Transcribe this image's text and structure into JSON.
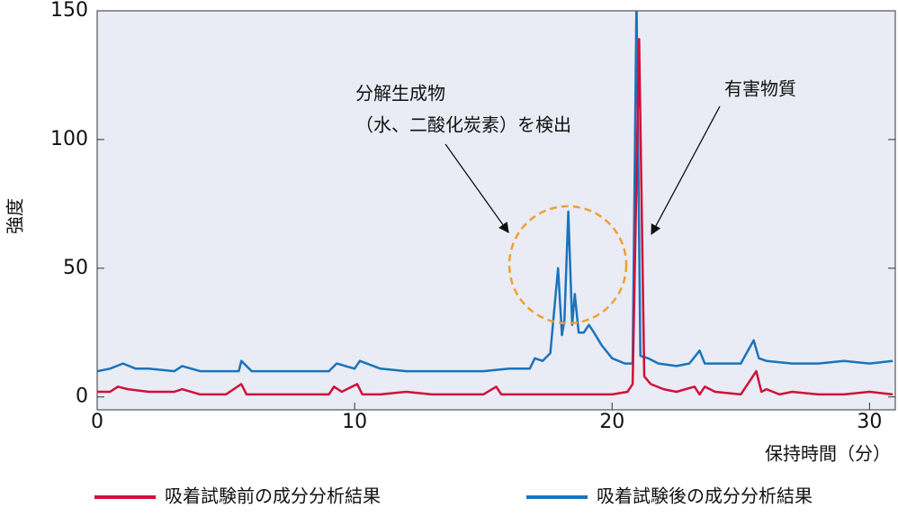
{
  "chart_data": {
    "type": "line",
    "xlabel": "保持時間（分）",
    "ylabel": "強度",
    "annotations": [
      "分解生成物",
      "（水、二酸化炭素）を検出",
      "有害物質"
    ],
    "xlim": [
      0,
      31
    ],
    "ylim": [
      -5,
      150
    ],
    "xticks": [
      0,
      10,
      20,
      30
    ],
    "yticks": [
      0,
      50,
      100,
      150
    ],
    "grid": false,
    "legend": "bottom",
    "series": [
      {
        "name": "吸着試験前の成分分析結果",
        "color": "#d0103a",
        "x": [
          0,
          0.5,
          0.8,
          1.2,
          2,
          3,
          3.3,
          4,
          5,
          5.6,
          5.8,
          7,
          8,
          9,
          9.2,
          9.5,
          10.1,
          10.3,
          11,
          12,
          13,
          14,
          15,
          15.5,
          15.7,
          17,
          18,
          19,
          20,
          20.6,
          20.8,
          21.05,
          21.25,
          21.5,
          22,
          22.5,
          23.2,
          23.4,
          23.6,
          24,
          25,
          25.6,
          25.8,
          26,
          26.5,
          27,
          28,
          29,
          30,
          30.9
        ],
        "values": [
          2,
          2,
          4,
          3,
          2,
          2,
          3,
          1,
          1,
          5,
          1,
          1,
          1,
          1,
          4,
          2,
          5,
          1,
          1,
          2,
          1,
          1,
          1,
          4,
          1,
          1,
          1,
          1,
          1,
          2,
          5,
          139,
          8,
          5,
          3,
          2,
          4,
          1,
          4,
          2,
          1,
          10,
          2,
          3,
          1,
          2,
          1,
          1,
          2,
          1
        ]
      },
      {
        "name": "吸着試験後の成分分析結果",
        "color": "#1a74bb",
        "x": [
          0,
          0.5,
          1,
          1.5,
          2,
          3,
          3.3,
          4,
          5,
          5.5,
          5.6,
          6,
          7,
          8,
          9,
          9.3,
          10,
          10.2,
          11,
          12,
          13,
          14,
          15,
          16,
          16.8,
          17,
          17.3,
          17.6,
          17.9,
          18.05,
          18.15,
          18.3,
          18.45,
          18.55,
          18.7,
          18.9,
          19.1,
          19.3,
          19.6,
          20,
          20.5,
          20.8,
          20.95,
          21.1,
          21.4,
          21.8,
          22.5,
          23,
          23.4,
          23.6,
          24,
          25,
          25.5,
          25.7,
          26,
          27,
          28,
          29,
          30,
          30.9
        ],
        "values": [
          10,
          11,
          13,
          11,
          11,
          10,
          12,
          10,
          10,
          10,
          14,
          10,
          10,
          10,
          10,
          13,
          11,
          14,
          11,
          10,
          10,
          10,
          10,
          11,
          11,
          15,
          14,
          17,
          50,
          24,
          30,
          72,
          28,
          40,
          25,
          25,
          28,
          25,
          20,
          15,
          13,
          13,
          155,
          16,
          15,
          13,
          12,
          13,
          18,
          13,
          13,
          13,
          22,
          15,
          14,
          13,
          13,
          14,
          13,
          14
        ]
      }
    ]
  }
}
